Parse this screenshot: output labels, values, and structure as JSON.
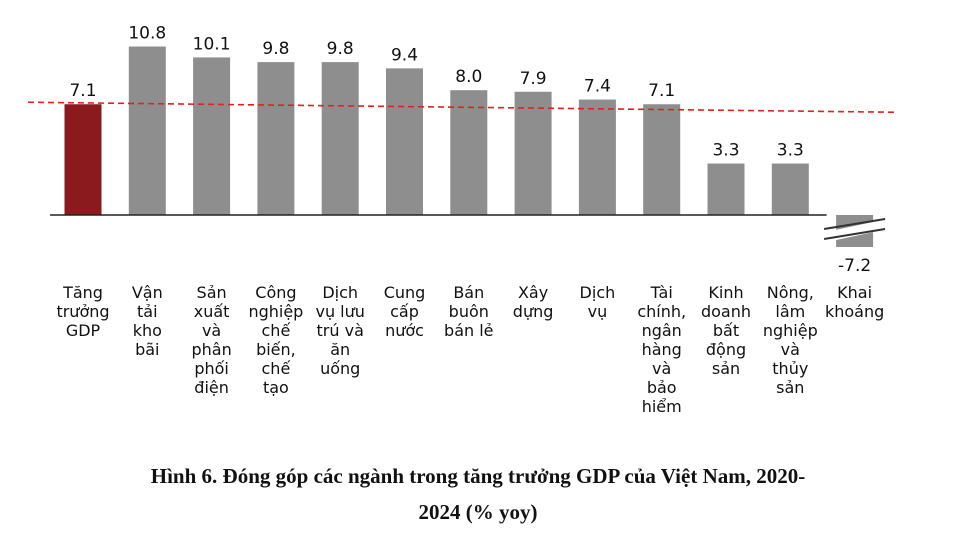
{
  "chart_data": {
    "type": "bar",
    "categories": [
      [
        "Tăng",
        "trưởng",
        "GDP"
      ],
      [
        "Vận",
        "tải",
        "kho",
        "bãi"
      ],
      [
        "Sản",
        "xuất",
        "và",
        "phân",
        "phối",
        "điện"
      ],
      [
        "Công",
        "nghiệp",
        "chế",
        "biến,",
        "chế",
        "tạo"
      ],
      [
        "Dịch",
        "vụ lưu",
        "trú và",
        "ăn",
        "uống"
      ],
      [
        "Cung",
        "cấp",
        "nước"
      ],
      [
        "Bán",
        "buôn",
        "bán lẻ"
      ],
      [
        "Xây",
        "dựng"
      ],
      [
        "Dịch",
        "vụ"
      ],
      [
        "Tài",
        "chính,",
        "ngân",
        "hàng",
        "và",
        "bảo",
        "hiểm"
      ],
      [
        "Kinh",
        "doanh",
        "bất",
        "động",
        "sản"
      ],
      [
        "Nông,",
        "lâm",
        "nghiệp",
        "và",
        "thủy",
        "sản"
      ],
      [
        "Khai",
        "khoáng"
      ]
    ],
    "values": [
      7.1,
      10.8,
      10.1,
      9.8,
      9.8,
      9.4,
      8.0,
      7.9,
      7.4,
      7.1,
      3.3,
      3.3,
      -7.2
    ],
    "value_labels": [
      "7.1",
      "10.8",
      "10.1",
      "9.8",
      "9.8",
      "9.4",
      "8.0",
      "7.9",
      "7.4",
      "7.1",
      "3.3",
      "3.3",
      "-7.2"
    ],
    "reference_line": {
      "value": 7.1,
      "style": "dashed",
      "color": "#e0211c"
    },
    "axis_break_category": "Khai khoáng",
    "colors": {
      "highlight": "#8b1a1f",
      "bar": "#8e8e8e",
      "axis": "#222222"
    },
    "highlight_index": 0,
    "grid": false,
    "legend": "none"
  },
  "caption": {
    "line1": "Hình 6. Đóng góp các ngành trong tăng trưởng GDP của Việt Nam, 2020-",
    "line2": "2024 (% yoy)"
  }
}
